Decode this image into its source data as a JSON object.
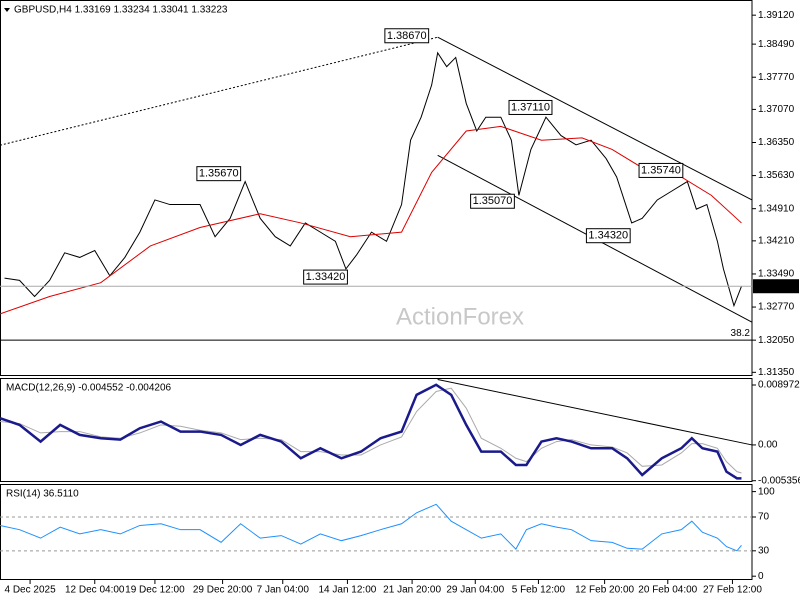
{
  "chart_data": [
    {
      "type": "line",
      "title": "GBPUSD,H4  1.33169 1.33234 1.33041 1.33223",
      "watermark": "ActionForex",
      "xlim": [
        0,
        500
      ],
      "xticks": [
        {
          "value": 20,
          "label": "4 Dec 2025"
        },
        {
          "value": 63,
          "label": "12 Dec 04:00"
        },
        {
          "value": 103,
          "label": "19 Dec 12:00"
        },
        {
          "value": 148,
          "label": "29 Dec 20:00"
        },
        {
          "value": 188,
          "label": "7 Jan 04:00"
        },
        {
          "value": 231,
          "label": "14 Jan 12:00"
        },
        {
          "value": 274,
          "label": "21 Jan 20:00"
        },
        {
          "value": 316,
          "label": "29 Jan 04:00"
        },
        {
          "value": 358,
          "label": "5 Feb 12:00"
        },
        {
          "value": 402,
          "label": "12 Feb 20:00"
        },
        {
          "value": 444,
          "label": "20 Feb 04:00"
        },
        {
          "value": 487,
          "label": "27 Feb 12:00"
        }
      ],
      "ylim": [
        1.3127,
        1.3945
      ],
      "yticks": [
        {
          "value": 1.3912,
          "label": "1.39120"
        },
        {
          "value": 1.3849,
          "label": "1.38490"
        },
        {
          "value": 1.3777,
          "label": "1.37770"
        },
        {
          "value": 1.3707,
          "label": "1.37070"
        },
        {
          "value": 1.3635,
          "label": "1.36350"
        },
        {
          "value": 1.3563,
          "label": "1.35630"
        },
        {
          "value": 1.3491,
          "label": "1.34910"
        },
        {
          "value": 1.3421,
          "label": "1.34210"
        },
        {
          "value": 1.3349,
          "label": "1.33490"
        },
        {
          "value": 1.3277,
          "label": "1.32770"
        },
        {
          "value": 1.3205,
          "label": "1.32050"
        },
        {
          "value": 1.3135,
          "label": "1.31350"
        }
      ],
      "series": [
        {
          "color": "#000000",
          "x": [
            3,
            13,
            23,
            33,
            43,
            53,
            63,
            73,
            83,
            93,
            103,
            113,
            123,
            133,
            143,
            153,
            163,
            173,
            183,
            193,
            203,
            213,
            223,
            230,
            237,
            247,
            257,
            267,
            273,
            280,
            287,
            291,
            297,
            303,
            310,
            317,
            323,
            333,
            340,
            345,
            353,
            363,
            373,
            383,
            393,
            403,
            410,
            420,
            427,
            437,
            447,
            457,
            463,
            470,
            477,
            481,
            488,
            493
          ],
          "values": [
            1.334,
            1.3335,
            1.33,
            1.3335,
            1.3395,
            1.3385,
            1.34,
            1.3345,
            1.3385,
            1.344,
            1.351,
            1.35,
            1.35,
            1.35,
            1.343,
            1.347,
            1.355,
            1.347,
            1.343,
            1.341,
            1.346,
            1.344,
            1.342,
            1.336,
            1.339,
            1.344,
            1.342,
            1.35,
            1.364,
            1.369,
            1.376,
            1.383,
            1.38,
            1.382,
            1.372,
            1.366,
            1.369,
            1.369,
            1.364,
            1.352,
            1.362,
            1.369,
            1.365,
            1.363,
            1.364,
            1.36,
            1.356,
            1.346,
            1.347,
            1.351,
            1.353,
            1.355,
            1.349,
            1.35,
            1.342,
            1.336,
            1.328,
            1.3322
          ]
        },
        {
          "color": "#dd0000",
          "x": [
            0,
            33,
            67,
            100,
            133,
            173,
            200,
            233,
            267,
            287,
            310,
            333,
            360,
            387,
            407,
            427,
            453,
            473,
            493
          ],
          "values": [
            1.3262,
            1.33,
            1.333,
            1.341,
            1.345,
            1.348,
            1.346,
            1.343,
            1.344,
            1.357,
            1.366,
            1.367,
            1.364,
            1.3645,
            1.362,
            1.358,
            1.356,
            1.352,
            1.346
          ]
        }
      ],
      "trendlines": [
        {
          "x": [
            0,
            291
          ],
          "y": [
            1.3629,
            1.3864
          ],
          "dash": true
        },
        {
          "x": [
            291,
            500
          ],
          "y": [
            1.3864,
            1.351
          ],
          "dash": false
        },
        {
          "x": [
            291,
            500
          ],
          "y": [
            1.3607,
            1.3244
          ],
          "dash": false
        }
      ],
      "levels": [
        {
          "value": 1.3205,
          "label": "38.2"
        }
      ],
      "last_price": 1.33223,
      "annotations": [
        {
          "text": "1.38670",
          "x": 285,
          "y": 1.3867
        },
        {
          "text": "1.35670",
          "x": 160,
          "y": 1.3567
        },
        {
          "text": "1.33420",
          "x": 231,
          "y": 1.3342
        },
        {
          "text": "1.37110",
          "x": 367,
          "y": 1.3711
        },
        {
          "text": "1.35070",
          "x": 342,
          "y": 1.3507
        },
        {
          "text": "1.35740",
          "x": 454,
          "y": 1.3574
        },
        {
          "text": "1.34320",
          "x": 419,
          "y": 1.3432
        }
      ]
    },
    {
      "type": "line",
      "title": "MACD(12,26,9) -0.004552 -0.004206",
      "xlim": [
        0,
        500
      ],
      "ylim": [
        -0.00555,
        0.01002
      ],
      "yticks": [
        0.008972,
        {
          "value": 0,
          "label": "0.00"
        },
        -0.005356
      ],
      "series": [
        {
          "color": "#aaaaaa",
          "x": [
            0,
            13,
            27,
            40,
            53,
            67,
            80,
            93,
            107,
            120,
            133,
            147,
            160,
            173,
            187,
            200,
            213,
            227,
            240,
            253,
            267,
            277,
            290,
            300,
            310,
            320,
            333,
            343,
            350,
            360,
            370,
            380,
            393,
            407,
            417,
            427,
            440,
            453,
            460,
            467,
            477,
            483,
            490,
            493
          ],
          "values": [
            0.0035,
            0.0032,
            0.0018,
            0.002,
            0.002,
            0.0012,
            0.001,
            0.0018,
            0.003,
            0.0028,
            0.0022,
            0.0018,
            0.0008,
            0.001,
            0.0008,
            -0.001,
            -0.001,
            -0.0015,
            -0.0015,
            0.0,
            0.0012,
            0.005,
            0.008,
            0.0085,
            0.0055,
            0.001,
            -0.0005,
            -0.002,
            -0.0025,
            -0.0005,
            0.0005,
            0.0008,
            0.0,
            -0.0003,
            -0.0012,
            -0.0032,
            -0.003,
            -0.0012,
            0.0002,
            0.0002,
            -0.0005,
            -0.0025,
            -0.004,
            -0.0042
          ]
        },
        {
          "color": "#1a1a8c",
          "x": [
            0,
            13,
            27,
            40,
            53,
            67,
            80,
            93,
            107,
            120,
            133,
            147,
            160,
            173,
            187,
            200,
            213,
            227,
            240,
            253,
            267,
            277,
            290,
            300,
            310,
            320,
            333,
            343,
            350,
            360,
            370,
            380,
            393,
            407,
            417,
            427,
            440,
            453,
            460,
            467,
            477,
            483,
            490,
            493
          ],
          "values": [
            0.004,
            0.003,
            0.0005,
            0.003,
            0.0015,
            0.001,
            0.0008,
            0.0025,
            0.0035,
            0.002,
            0.002,
            0.0015,
            0.0,
            0.0015,
            0.0005,
            -0.002,
            -0.0005,
            -0.002,
            -0.001,
            0.001,
            0.002,
            0.0075,
            0.009,
            0.0075,
            0.003,
            -0.001,
            -0.001,
            -0.003,
            -0.003,
            0.0005,
            0.001,
            0.0005,
            -0.0005,
            -0.0005,
            -0.002,
            -0.0045,
            -0.002,
            -0.0005,
            0.001,
            -0.0005,
            -0.001,
            -0.004,
            -0.005,
            -0.005
          ]
        }
      ],
      "trendlines": [
        {
          "x": [
            291,
            500
          ],
          "y": [
            0.0098,
            0.0
          ],
          "dash": false
        }
      ]
    },
    {
      "type": "line",
      "title": "RSI(14) 36.5110",
      "xlim": [
        0,
        500
      ],
      "ylim": [
        -4.5,
        109
      ],
      "yticks": [
        100,
        70,
        30,
        0
      ],
      "levels": [
        {
          "value": 70
        },
        {
          "value": 30
        }
      ],
      "series": [
        {
          "color": "#1e90ff",
          "x": [
            0,
            13,
            27,
            40,
            53,
            67,
            80,
            93,
            107,
            120,
            133,
            147,
            160,
            173,
            187,
            200,
            213,
            227,
            240,
            253,
            267,
            277,
            290,
            300,
            310,
            320,
            333,
            343,
            350,
            360,
            370,
            380,
            393,
            407,
            417,
            427,
            440,
            453,
            460,
            467,
            477,
            483,
            490,
            493
          ],
          "values": [
            60,
            55,
            45,
            58,
            50,
            55,
            50,
            60,
            62,
            55,
            55,
            40,
            62,
            45,
            48,
            38,
            50,
            42,
            48,
            55,
            62,
            75,
            85,
            65,
            55,
            45,
            50,
            32,
            55,
            62,
            58,
            55,
            42,
            40,
            33,
            32,
            50,
            55,
            65,
            52,
            45,
            35,
            30,
            36.5
          ]
        }
      ]
    }
  ]
}
